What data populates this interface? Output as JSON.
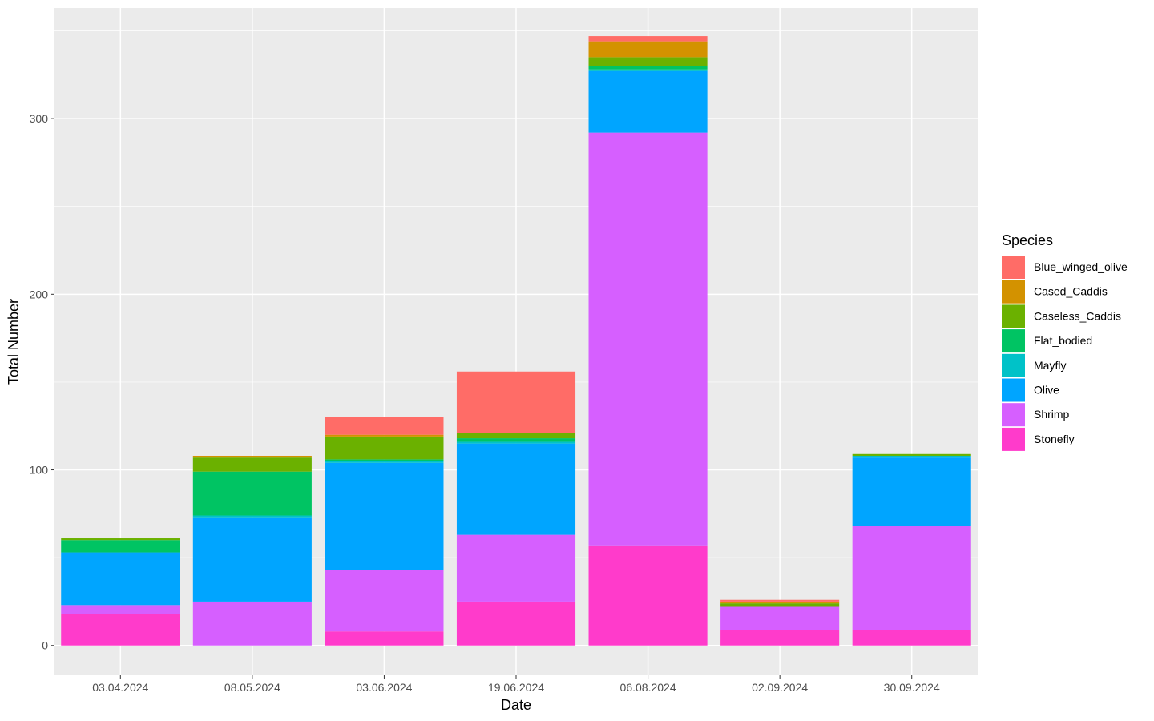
{
  "chart_data": {
    "type": "bar",
    "stacked": true,
    "title": "",
    "xlabel": "Date",
    "ylabel": "Total Number",
    "ylim": [
      -17,
      363
    ],
    "yticks": [
      0,
      100,
      200,
      300
    ],
    "categories": [
      "03.04.2024",
      "08.05.2024",
      "03.06.2024",
      "19.06.2024",
      "06.08.2024",
      "02.09.2024",
      "30.09.2024"
    ],
    "legend": {
      "title": "Species",
      "position": "right"
    },
    "series": [
      {
        "name": "Stonefly",
        "color": "#FF3BCB",
        "values": [
          18,
          0,
          8,
          25,
          57,
          9,
          9
        ]
      },
      {
        "name": "Shrimp",
        "color": "#D65FFF",
        "values": [
          5,
          25,
          35,
          38,
          235,
          13,
          59
        ]
      },
      {
        "name": "Olive",
        "color": "#00A5FF",
        "values": [
          30,
          48,
          61,
          52,
          35,
          0,
          39
        ]
      },
      {
        "name": "Mayfly",
        "color": "#00C2C8",
        "values": [
          0,
          1,
          1,
          1,
          1,
          0,
          1
        ]
      },
      {
        "name": "Flat_bodied",
        "color": "#00C463",
        "values": [
          7,
          25,
          1,
          2,
          2,
          0,
          0
        ]
      },
      {
        "name": "Caseless_Caddis",
        "color": "#6BB100",
        "values": [
          1,
          8,
          13,
          3,
          5,
          2,
          1
        ]
      },
      {
        "name": "Cased_Caddis",
        "color": "#D39200",
        "values": [
          0,
          1,
          1,
          0,
          9,
          1,
          0
        ]
      },
      {
        "name": "Blue_winged_olive",
        "color": "#FF6C67",
        "values": [
          0,
          0,
          10,
          35,
          3,
          1,
          0
        ]
      }
    ],
    "legend_order": [
      "Blue_winged_olive",
      "Cased_Caddis",
      "Caseless_Caddis",
      "Flat_bodied",
      "Mayfly",
      "Olive",
      "Shrimp",
      "Stonefly"
    ]
  }
}
